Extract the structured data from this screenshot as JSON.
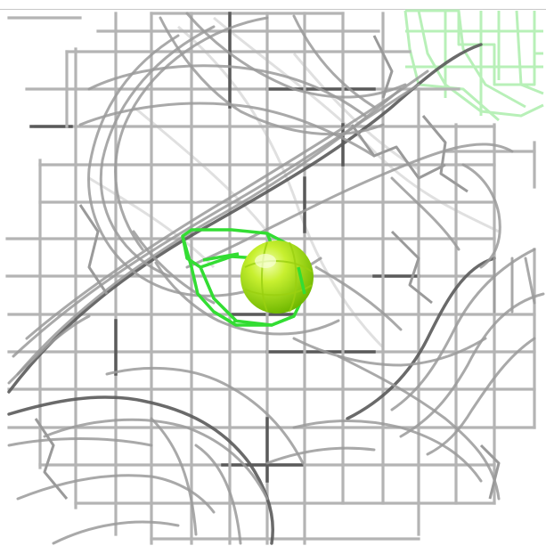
{
  "scene": {
    "background_color": "#ffffff",
    "grid_stroke_color": "#b4b4b4",
    "grid_dark_color": "#5a5a5a",
    "mesh_stroke_color": "#9a9a9a",
    "mesh_faint_color": "#e0e0e0",
    "ligand_cage_color": "#33dd33",
    "ligand_sphere_color": "#aaee22",
    "faint_cage_color": "#b8f0b8"
  }
}
